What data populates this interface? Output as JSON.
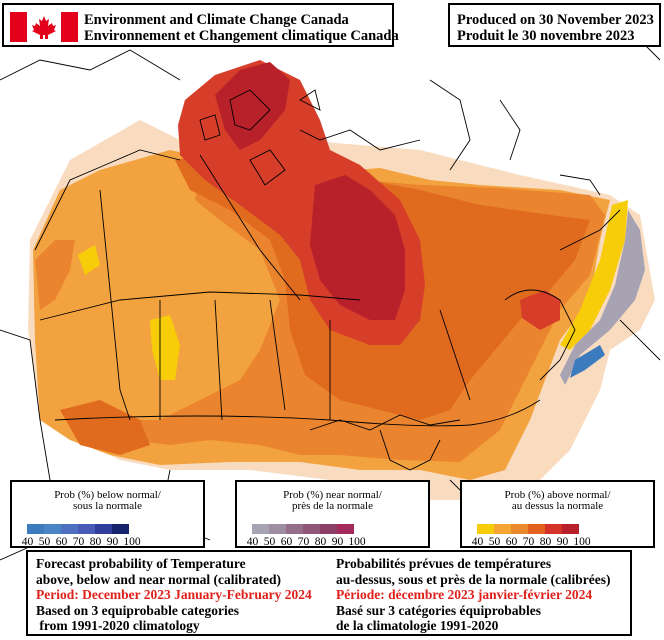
{
  "header": {
    "org_en": "Environment and Climate Change Canada",
    "org_fr": "Environnement et Changement climatique Canada",
    "produced_en": "Produced on 30 November 2023",
    "produced_fr": "Produit le 30 novembre 2023"
  },
  "legend": {
    "below": {
      "title_en": "Prob (%) below normal/",
      "title_fr": "sous la normale",
      "ticks": [
        "40",
        "50",
        "60",
        "70",
        "80",
        "90",
        "100"
      ],
      "colors": [
        "#3d7bbf",
        "#4a86c6",
        "#4f6fc0",
        "#4a5ab8",
        "#2f3e9a",
        "#17246e"
      ]
    },
    "near": {
      "title_en": "Prob (%) near normal/",
      "title_fr": "près de la normale",
      "ticks": [
        "40",
        "50",
        "60",
        "70",
        "80",
        "90",
        "100"
      ],
      "colors": [
        "#a7a3b3",
        "#9e8ea3",
        "#956f8a",
        "#8f5676",
        "#8e3f66",
        "#a42a5e"
      ]
    },
    "above": {
      "title_en": "Prob (%) above normal/",
      "title_fr": "au dessus la normale",
      "ticks": [
        "40",
        "50",
        "60",
        "70",
        "80",
        "90",
        "100"
      ],
      "colors": [
        "#f7cd0a",
        "#f5a632",
        "#e98a2e",
        "#e3611f",
        "#d43327",
        "#b8202a"
      ]
    }
  },
  "footer": {
    "en": {
      "line1": "Forecast probability of Temperature",
      "line2": "above, below and near normal (calibrated)",
      "period": "Period: December 2023 January-February 2024",
      "line4": "Based on 3 equiprobable categories",
      "line5": " from 1991-2020 climatology"
    },
    "fr": {
      "line1": "Probabilités prévues de températures",
      "line2": "au-dessus, sous et près de la normale (calibrées)",
      "period": "Période: décembre 2023 janvier-février 2024",
      "line4": "Basé sur 3 catégories équiprobables",
      "line5": "de la climatologie 1991-2020"
    }
  },
  "map_colors": {
    "p50": "#f2a23e",
    "p60": "#ea842e",
    "p70": "#e06a1e",
    "p80": "#d63e2a",
    "p90": "#b8202a",
    "p40": "#f7cd0a",
    "pale": "#f9dcc0",
    "near40": "#a7a3b3",
    "below50": "#3d7bbf"
  }
}
